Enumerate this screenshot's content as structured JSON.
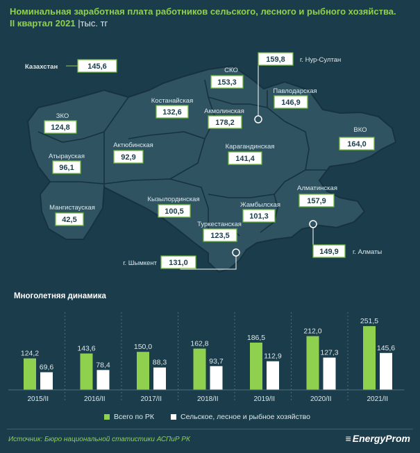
{
  "header": {
    "title_line1": "Номинальная заработная плата работников сельского, лесного и рыбного хозяйства.",
    "title_line2": "II квартал 2021",
    "unit": "|тыс. тг"
  },
  "map": {
    "country_label": "Казахстан",
    "country_value": "145,6",
    "regions": [
      {
        "name": "ЗКО",
        "value": "124,8"
      },
      {
        "name": "Атырауская",
        "value": "96,1"
      },
      {
        "name": "Мангистауская",
        "value": "42,5"
      },
      {
        "name": "Актюбинская",
        "value": "92,9"
      },
      {
        "name": "Костанайская",
        "value": "132,6"
      },
      {
        "name": "СКО",
        "value": "153,3"
      },
      {
        "name": "Акмолинская",
        "value": "178,2"
      },
      {
        "name": "Павлодарская",
        "value": "146,9"
      },
      {
        "name": "ВКО",
        "value": "164,0"
      },
      {
        "name": "Карагандинская",
        "value": "141,4"
      },
      {
        "name": "Кызылординская",
        "value": "100,5"
      },
      {
        "name": "Жамбылская",
        "value": "101,3"
      },
      {
        "name": "Алматинская",
        "value": "157,9"
      },
      {
        "name": "Туркестанская",
        "value": "123,5"
      }
    ],
    "cities": [
      {
        "name": "г. Нур-Султан",
        "value": "159,8"
      },
      {
        "name": "г. Алматы",
        "value": "149,9"
      },
      {
        "name": "г. Шымкент",
        "value": "131,0"
      }
    ]
  },
  "dynamics_title": "Многолетняя динамика",
  "chart_data": {
    "type": "bar",
    "categories": [
      "2015/II",
      "2016/II",
      "2017/II",
      "2018/II",
      "2019/II",
      "2020/II",
      "2021/II"
    ],
    "series": [
      {
        "name": "Всего по РК",
        "values": [
          124.2,
          143.6,
          150.0,
          162.8,
          186.5,
          212.0,
          251.5
        ],
        "labels": [
          "124,2",
          "143,6",
          "150,0",
          "162,8",
          "186,5",
          "212,0",
          "251,5"
        ],
        "color": "#8fd14f"
      },
      {
        "name": "Сельское, лесное и рыбное хозяйство",
        "values": [
          69.6,
          78.4,
          88.3,
          93.7,
          112.9,
          127.3,
          145.6
        ],
        "labels": [
          "69,6",
          "78,4",
          "88,3",
          "93,7",
          "112,9",
          "127,3",
          "145,6"
        ],
        "color": "#ffffff"
      }
    ],
    "grid": "vertical dashed separators",
    "legend_position": "bottom"
  },
  "footer": {
    "source": "Источник: Бюро национальной  статистики АСПиР РК",
    "logo": "EnergyProm"
  },
  "colors": {
    "background": "#1b3d4b",
    "map_fill": "#2f5361",
    "accent": "#8fd14f"
  }
}
